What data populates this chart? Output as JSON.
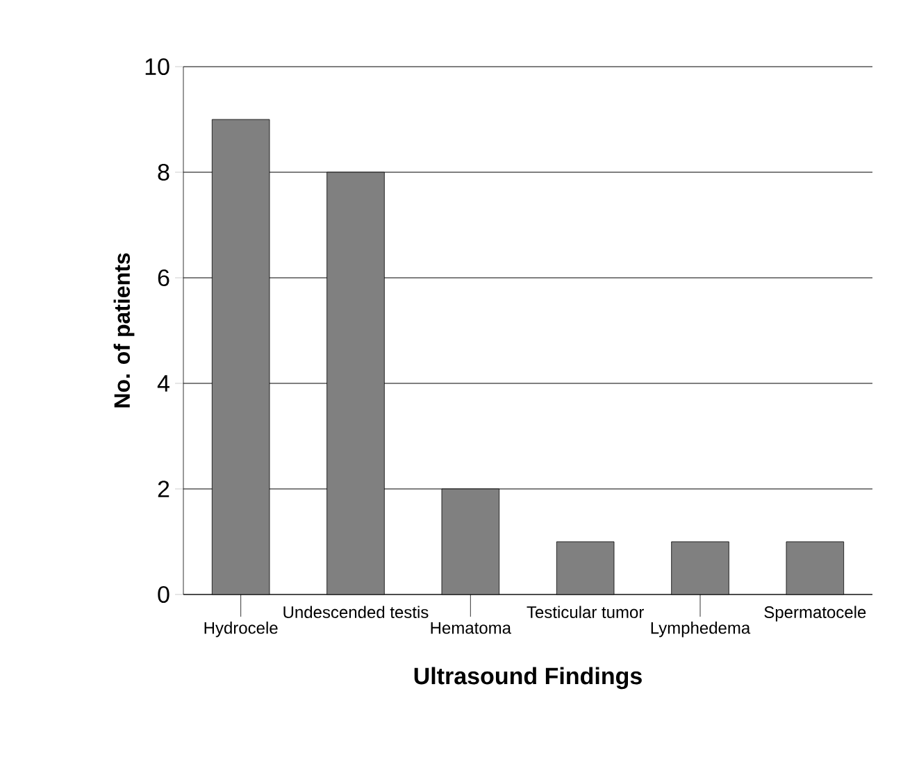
{
  "chart_data": {
    "type": "bar",
    "xlabel": "Ultrasound Findings",
    "ylabel": "No. of patients",
    "categories": [
      "Hydrocele",
      "Undescended testis",
      "Hematoma",
      "Testicular tumor",
      "Lymphedema",
      "Spermatocele"
    ],
    "values": [
      9,
      8,
      2,
      1,
      1,
      1
    ],
    "color": "#808080",
    "ylim": [
      0,
      10
    ],
    "yticks": [
      0,
      2,
      4,
      6,
      8,
      10
    ],
    "grid": "y"
  }
}
